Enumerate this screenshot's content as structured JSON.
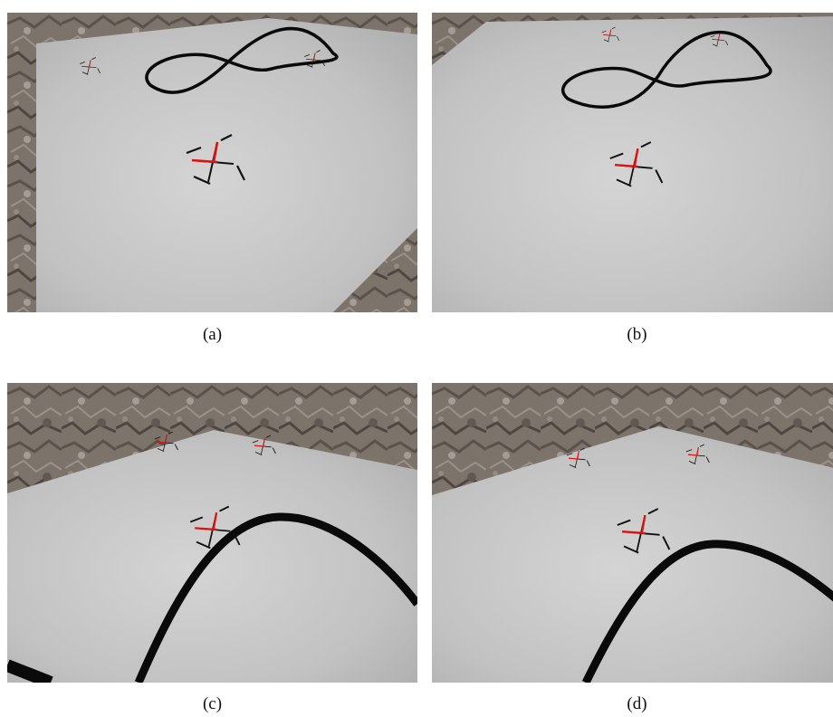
{
  "figure": {
    "panels": [
      {
        "id": "a",
        "caption": "(a)"
      },
      {
        "id": "b",
        "caption": "(b)"
      },
      {
        "id": "c",
        "caption": "(c)"
      },
      {
        "id": "d",
        "caption": "(d)"
      }
    ]
  },
  "colors": {
    "wall": "#7a7068",
    "floor": "#c8c8c8",
    "track": "#0a0a0a",
    "drone_body": "#e01010",
    "drone_arm": "#111111"
  }
}
